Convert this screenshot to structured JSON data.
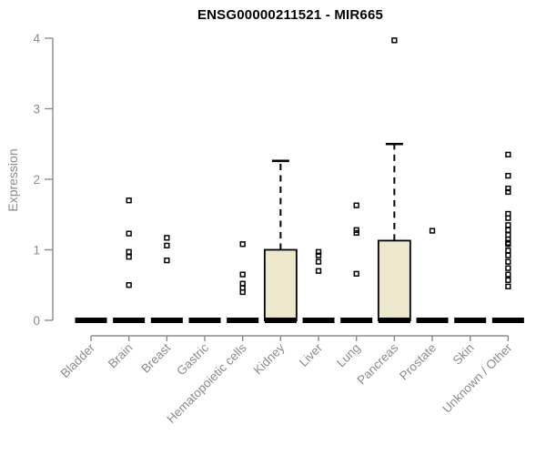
{
  "chart_data": {
    "type": "boxplot",
    "title": "ENSG00000211521 - MIR665",
    "ylabel": "Expression",
    "xlabel": "",
    "ylim": [
      0,
      4
    ],
    "yticks": [
      0,
      1,
      2,
      3,
      4
    ],
    "grid": false,
    "legend": null,
    "categories": [
      "Bladder",
      "Brain",
      "Breast",
      "Gastric",
      "Hematopoietic cells",
      "Kidney",
      "Liver",
      "Lung",
      "Pancreas",
      "Prostate",
      "Skin",
      "Unknown / Other"
    ],
    "series": [
      {
        "category": "Bladder",
        "q1": 0,
        "median": 0,
        "q3": 0,
        "whisker_low": 0,
        "whisker_high": 0,
        "outliers": []
      },
      {
        "category": "Brain",
        "q1": 0,
        "median": 0,
        "q3": 0,
        "whisker_low": 0,
        "whisker_high": 0,
        "outliers": [
          1.7,
          1.23,
          0.97,
          0.9,
          0.5
        ]
      },
      {
        "category": "Breast",
        "q1": 0,
        "median": 0,
        "q3": 0,
        "whisker_low": 0,
        "whisker_high": 0,
        "outliers": [
          1.17,
          1.06,
          0.85
        ]
      },
      {
        "category": "Gastric",
        "q1": 0,
        "median": 0,
        "q3": 0,
        "whisker_low": 0,
        "whisker_high": 0,
        "outliers": []
      },
      {
        "category": "Hematopoietic cells",
        "q1": 0,
        "median": 0,
        "q3": 0,
        "whisker_low": 0,
        "whisker_high": 0,
        "outliers": [
          1.08,
          0.65,
          0.52,
          0.46,
          0.4
        ]
      },
      {
        "category": "Kidney",
        "q1": 0,
        "median": 0,
        "q3": 1.0,
        "whisker_low": 0,
        "whisker_high": 2.26,
        "outliers": []
      },
      {
        "category": "Liver",
        "q1": 0,
        "median": 0,
        "q3": 0,
        "whisker_low": 0,
        "whisker_high": 0,
        "outliers": [
          0.97,
          0.92,
          0.83,
          0.7
        ]
      },
      {
        "category": "Lung",
        "q1": 0,
        "median": 0,
        "q3": 0,
        "whisker_low": 0,
        "whisker_high": 0,
        "outliers": [
          1.63,
          1.28,
          1.24,
          0.66
        ]
      },
      {
        "category": "Pancreas",
        "q1": 0,
        "median": 0,
        "q3": 1.13,
        "whisker_low": 0,
        "whisker_high": 2.5,
        "outliers": [
          3.97
        ]
      },
      {
        "category": "Prostate",
        "q1": 0,
        "median": 0,
        "q3": 0,
        "whisker_low": 0,
        "whisker_high": 0,
        "outliers": [
          1.27
        ]
      },
      {
        "category": "Skin",
        "q1": 0,
        "median": 0,
        "q3": 0,
        "whisker_low": 0,
        "whisker_high": 0,
        "outliers": []
      },
      {
        "category": "Unknown / Other",
        "q1": 0,
        "median": 0,
        "q3": 0,
        "whisker_low": 0,
        "whisker_high": 0,
        "outliers": [
          2.35,
          2.05,
          1.87,
          1.82,
          1.51,
          1.45,
          1.35,
          1.28,
          1.21,
          1.15,
          1.1,
          1.08,
          0.99,
          0.92,
          0.83,
          0.74,
          0.65,
          0.57,
          0.48
        ]
      }
    ],
    "colors": {
      "box_fill": "#ece7cd",
      "box_stroke": "#000000",
      "median": "#000000",
      "whisker": "#000000",
      "outlier": "#000000",
      "axis": "#8b8b8b",
      "title": "#000000",
      "background": "#ffffff"
    }
  }
}
